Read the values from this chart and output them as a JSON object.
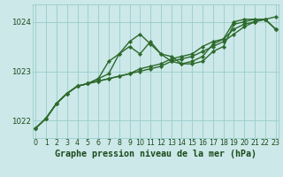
{
  "title": "Graphe pression niveau de la mer (hPa)",
  "hours": [
    0,
    1,
    2,
    3,
    4,
    5,
    6,
    7,
    8,
    9,
    10,
    11,
    12,
    13,
    14,
    15,
    16,
    17,
    18,
    19,
    20,
    21,
    22,
    23
  ],
  "series": [
    [
      1021.85,
      1022.05,
      1022.35,
      1022.55,
      1022.7,
      1022.75,
      1022.8,
      1022.85,
      1022.9,
      1022.95,
      1023.0,
      1023.05,
      1023.1,
      1023.2,
      1023.25,
      1023.3,
      1023.4,
      1023.5,
      1023.6,
      1023.75,
      1023.9,
      1024.0,
      1024.05,
      1024.1
    ],
    [
      1021.85,
      1022.05,
      1022.35,
      1022.55,
      1022.7,
      1022.75,
      1022.85,
      1023.2,
      1023.35,
      1023.6,
      1023.75,
      1023.55,
      1023.35,
      1023.2,
      1023.15,
      1023.2,
      1023.3,
      1023.55,
      1023.65,
      1024.0,
      1024.05,
      1024.05,
      1024.05,
      1023.85
    ],
    [
      1021.85,
      1022.05,
      1022.35,
      1022.55,
      1022.7,
      1022.75,
      1022.85,
      1022.95,
      1023.35,
      1023.5,
      1023.35,
      1023.6,
      1023.35,
      1023.3,
      1023.15,
      1023.15,
      1023.2,
      1023.4,
      1023.5,
      1023.95,
      1024.0,
      1024.05,
      1024.05,
      1023.85
    ],
    [
      1021.85,
      1022.05,
      1022.35,
      1022.55,
      1022.7,
      1022.75,
      1022.8,
      1022.85,
      1022.9,
      1022.95,
      1023.05,
      1023.1,
      1023.15,
      1023.25,
      1023.3,
      1023.35,
      1023.5,
      1023.6,
      1023.65,
      1023.85,
      1023.95,
      1024.0,
      1024.05,
      1023.85
    ]
  ],
  "line_color": "#2d6a2d",
  "line_width": 1.0,
  "marker": "D",
  "marker_size": 2.2,
  "ylim": [
    1021.65,
    1024.35
  ],
  "yticks": [
    1022,
    1023,
    1024
  ],
  "xlim": [
    -0.3,
    23.3
  ],
  "bg_color": "#cce8e8",
  "grid_color": "#99cccc",
  "label_color": "#1a4a1a",
  "title_fontsize": 7.2,
  "tick_fontsize": 6.2,
  "fig_width": 3.2,
  "fig_height": 2.0,
  "dpi": 100
}
